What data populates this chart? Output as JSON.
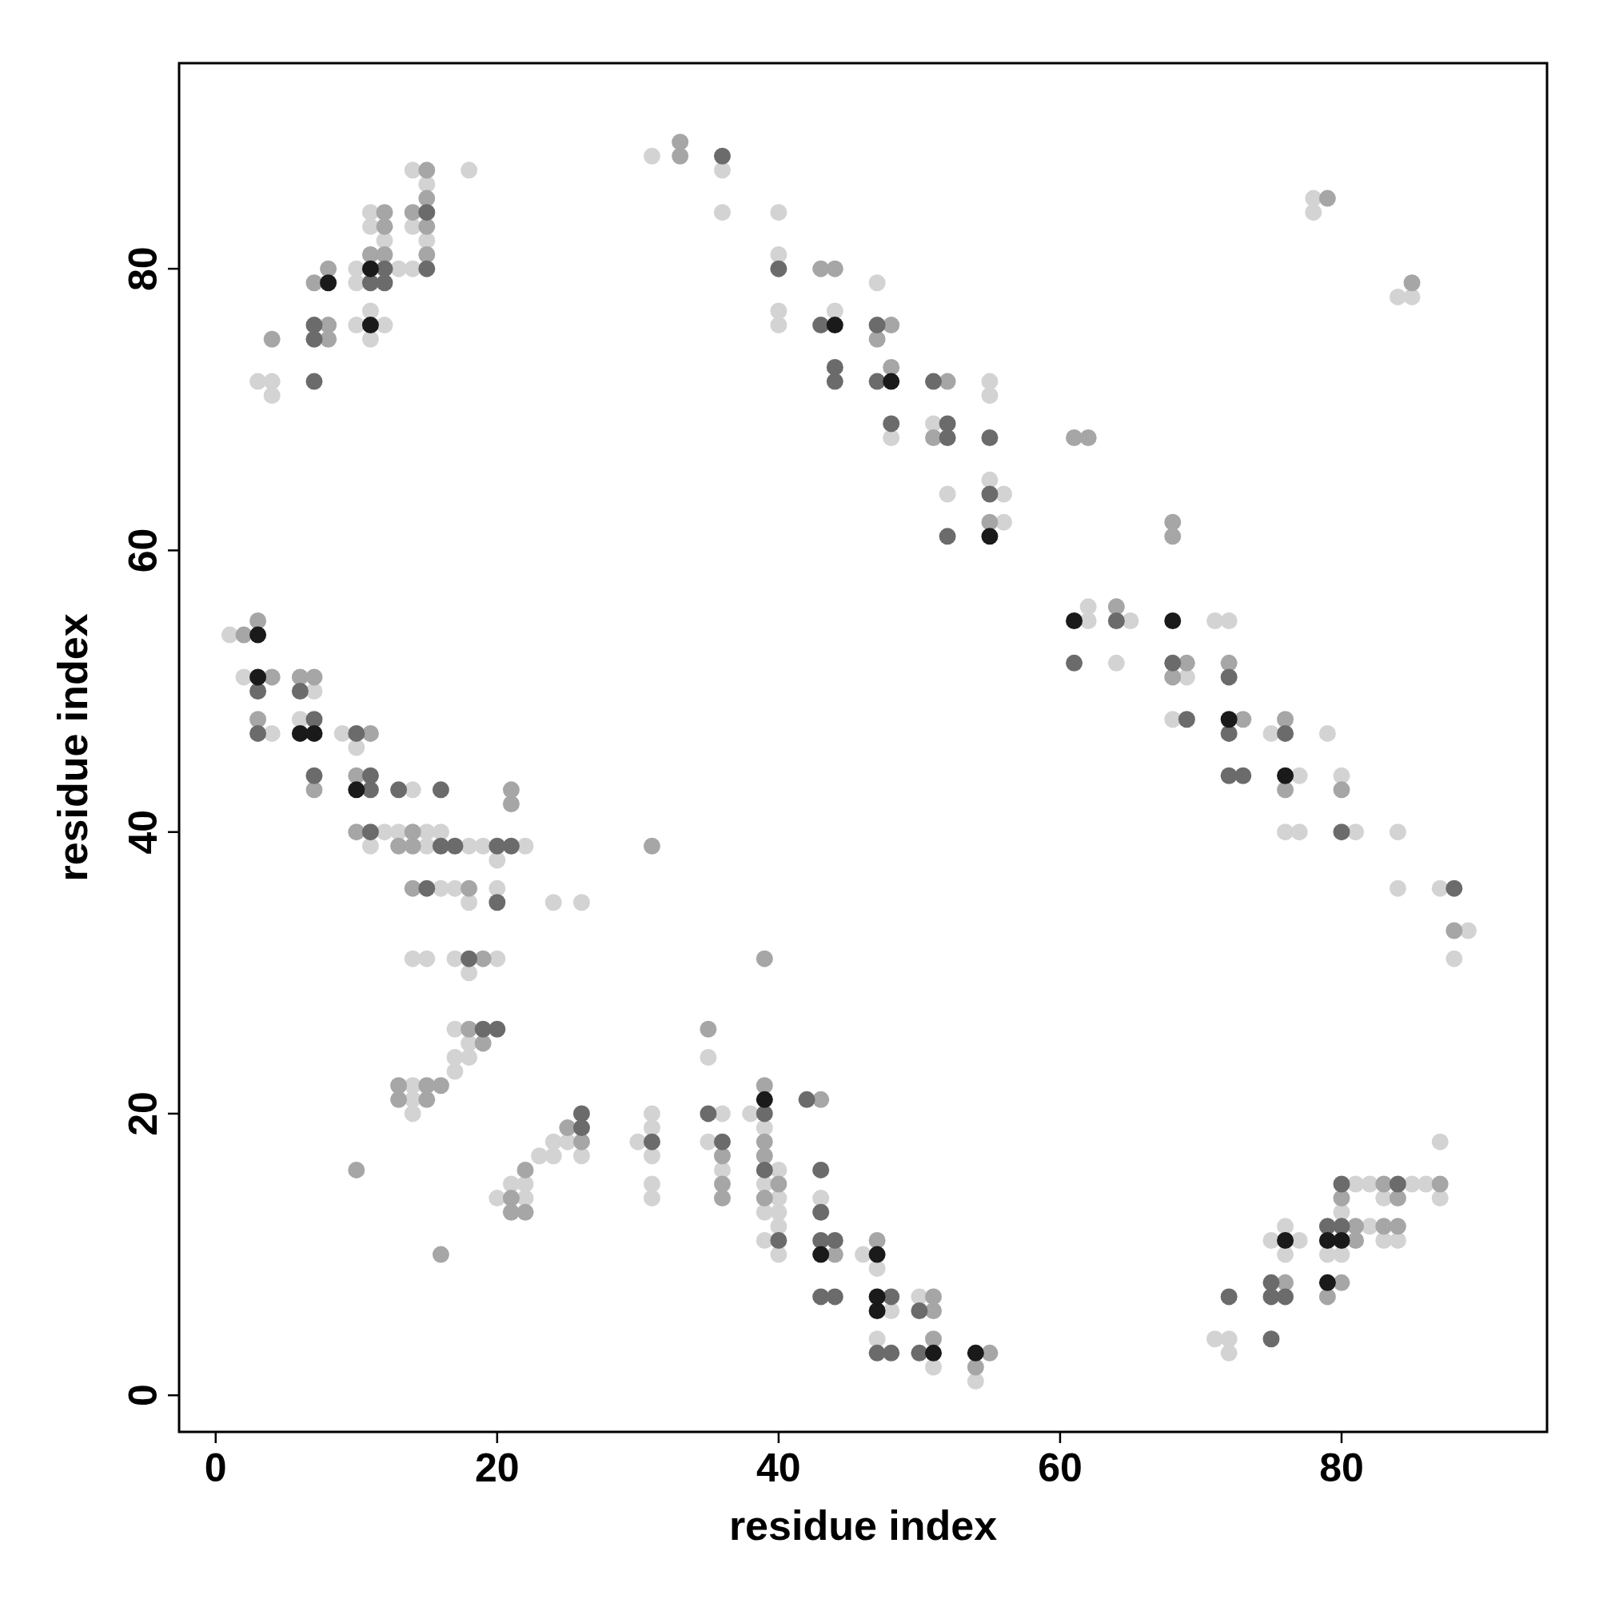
{
  "chart_data": {
    "type": "scatter",
    "xlabel": "residue index",
    "ylabel": "residue index",
    "xlim": [
      -2.6,
      94.6
    ],
    "ylim": [
      -2.6,
      94.6
    ],
    "xticks": [
      0,
      20,
      40,
      60,
      80
    ],
    "yticks": [
      0,
      20,
      40,
      60,
      80
    ],
    "marker": "circle",
    "series": [
      {
        "color": "#d3d3d3",
        "x": [
          1,
          2,
          3,
          4,
          4,
          4,
          6,
          7,
          9,
          10,
          10,
          10,
          10,
          11,
          11,
          11,
          11,
          11,
          12,
          12,
          12,
          13,
          13,
          14,
          14,
          14,
          14,
          14,
          14,
          14,
          14,
          15,
          15,
          15,
          15,
          15,
          16,
          16,
          17,
          17,
          17,
          17,
          17,
          18,
          18,
          18,
          18,
          18,
          18,
          19,
          20,
          20,
          20,
          20,
          21,
          22,
          22,
          22,
          23,
          24,
          24,
          24,
          25,
          26,
          26,
          30,
          31,
          31,
          31,
          31,
          31,
          31,
          35,
          35,
          36,
          36,
          36,
          36,
          38,
          39,
          39,
          39,
          39,
          40,
          40,
          40,
          40,
          40,
          40,
          40,
          40,
          40,
          43,
          44,
          46,
          47,
          47,
          47,
          48,
          48,
          50,
          51,
          51,
          52,
          54,
          55,
          55,
          55,
          56,
          56,
          62,
          62,
          64,
          65,
          68,
          69,
          71,
          71,
          72,
          72,
          72,
          75,
          75,
          76,
          76,
          76,
          77,
          77,
          77,
          78,
          78,
          79,
          79,
          80,
          80,
          80,
          81,
          81,
          82,
          82,
          83,
          83,
          84,
          84,
          84,
          84,
          85,
          85,
          86,
          87,
          87,
          87,
          88,
          89
        ],
        "values": [
          54,
          51,
          72,
          72,
          71,
          47,
          48,
          50,
          47,
          80,
          79,
          76,
          46,
          84,
          83,
          77,
          75,
          39,
          82,
          76,
          40,
          80,
          40,
          87,
          83,
          80,
          43,
          31,
          22,
          21,
          20,
          86,
          82,
          40,
          39,
          31,
          40,
          36,
          36,
          31,
          26,
          24,
          23,
          87,
          39,
          35,
          30,
          25,
          24,
          39,
          38,
          36,
          31,
          14,
          15,
          39,
          15,
          14,
          17,
          35,
          18,
          17,
          18,
          35,
          17,
          18,
          88,
          20,
          19,
          17,
          15,
          14,
          24,
          18,
          87,
          84,
          20,
          16,
          20,
          19,
          15,
          13,
          11,
          84,
          81,
          77,
          76,
          16,
          14,
          13,
          12,
          10,
          14,
          77,
          10,
          79,
          9,
          4,
          68,
          6,
          7,
          69,
          2,
          64,
          1,
          72,
          71,
          65,
          64,
          62,
          56,
          55,
          52,
          55,
          48,
          51,
          55,
          4,
          55,
          4,
          3,
          47,
          11,
          40,
          12,
          10,
          44,
          40,
          11,
          85,
          84,
          47,
          10,
          44,
          13,
          10,
          40,
          15,
          15,
          12,
          14,
          11,
          78,
          40,
          36,
          11,
          78,
          15,
          15,
          36,
          18,
          14,
          31,
          33
        ]
      },
      {
        "color": "#a6a6a6",
        "x": [
          2,
          3,
          3,
          4,
          4,
          6,
          7,
          7,
          7,
          8,
          8,
          8,
          10,
          10,
          10,
          11,
          11,
          12,
          12,
          12,
          13,
          13,
          13,
          14,
          14,
          14,
          14,
          15,
          15,
          15,
          15,
          15,
          15,
          16,
          16,
          18,
          18,
          19,
          19,
          21,
          21,
          21,
          21,
          22,
          22,
          25,
          26,
          31,
          33,
          33,
          35,
          36,
          36,
          36,
          39,
          39,
          39,
          39,
          39,
          40,
          43,
          43,
          44,
          44,
          47,
          47,
          48,
          48,
          51,
          51,
          51,
          51,
          52,
          54,
          55,
          55,
          61,
          62,
          64,
          68,
          68,
          68,
          69,
          72,
          73,
          76,
          76,
          76,
          79,
          79,
          80,
          80,
          80,
          81,
          81,
          83,
          83,
          84,
          84,
          85,
          87,
          88
        ],
        "values": [
          54,
          55,
          48,
          75,
          51,
          51,
          79,
          51,
          43,
          80,
          76,
          75,
          44,
          40,
          16,
          81,
          47,
          84,
          83,
          81,
          39,
          22,
          21,
          84,
          40,
          39,
          36,
          87,
          85,
          83,
          81,
          22,
          21,
          22,
          10,
          36,
          26,
          31,
          25,
          43,
          42,
          14,
          13,
          16,
          13,
          19,
          18,
          39,
          89,
          88,
          26,
          17,
          15,
          14,
          31,
          22,
          18,
          17,
          14,
          15,
          80,
          21,
          80,
          10,
          75,
          11,
          76,
          73,
          68,
          7,
          6,
          4,
          72,
          2,
          62,
          3,
          68,
          68,
          56,
          62,
          61,
          51,
          52,
          52,
          48,
          48,
          43,
          8,
          85,
          7,
          43,
          14,
          8,
          12,
          11,
          15,
          12,
          14,
          12,
          79,
          15,
          33
        ]
      },
      {
        "color": "#6b6b6b",
        "x": [
          3,
          3,
          6,
          7,
          7,
          7,
          7,
          7,
          10,
          11,
          11,
          11,
          11,
          12,
          12,
          13,
          15,
          15,
          15,
          16,
          16,
          17,
          18,
          19,
          20,
          20,
          20,
          21,
          26,
          26,
          31,
          35,
          36,
          36,
          39,
          39,
          40,
          40,
          42,
          43,
          43,
          43,
          43,
          43,
          44,
          44,
          44,
          44,
          47,
          47,
          47,
          48,
          48,
          48,
          50,
          50,
          51,
          52,
          52,
          52,
          55,
          55,
          61,
          64,
          68,
          69,
          72,
          72,
          72,
          72,
          73,
          75,
          75,
          75,
          76,
          76,
          79,
          80,
          80,
          80,
          84,
          88
        ],
        "values": [
          50,
          47,
          50,
          76,
          75,
          72,
          48,
          44,
          47,
          79,
          44,
          43,
          40,
          80,
          79,
          43,
          84,
          80,
          36,
          43,
          39,
          39,
          31,
          26,
          39,
          35,
          26,
          39,
          20,
          19,
          18,
          20,
          88,
          18,
          20,
          16,
          80,
          11,
          21,
          76,
          16,
          13,
          11,
          7,
          73,
          72,
          11,
          7,
          76,
          72,
          3,
          69,
          7,
          3,
          6,
          3,
          72,
          69,
          68,
          61,
          68,
          64,
          52,
          55,
          52,
          48,
          51,
          47,
          44,
          7,
          44,
          8,
          7,
          4,
          47,
          7,
          12,
          40,
          15,
          12,
          15,
          36
        ]
      },
      {
        "color": "#1a1a1a",
        "x": [
          3,
          3,
          6,
          7,
          8,
          10,
          11,
          11,
          39,
          43,
          44,
          47,
          47,
          47,
          48,
          51,
          54,
          55,
          61,
          68,
          72,
          76,
          76,
          79,
          79,
          80
        ],
        "values": [
          54,
          51,
          47,
          47,
          79,
          43,
          80,
          76,
          21,
          10,
          76,
          10,
          7,
          6,
          72,
          3,
          3,
          61,
          55,
          55,
          48,
          44,
          11,
          11,
          8,
          11
        ]
      }
    ]
  }
}
